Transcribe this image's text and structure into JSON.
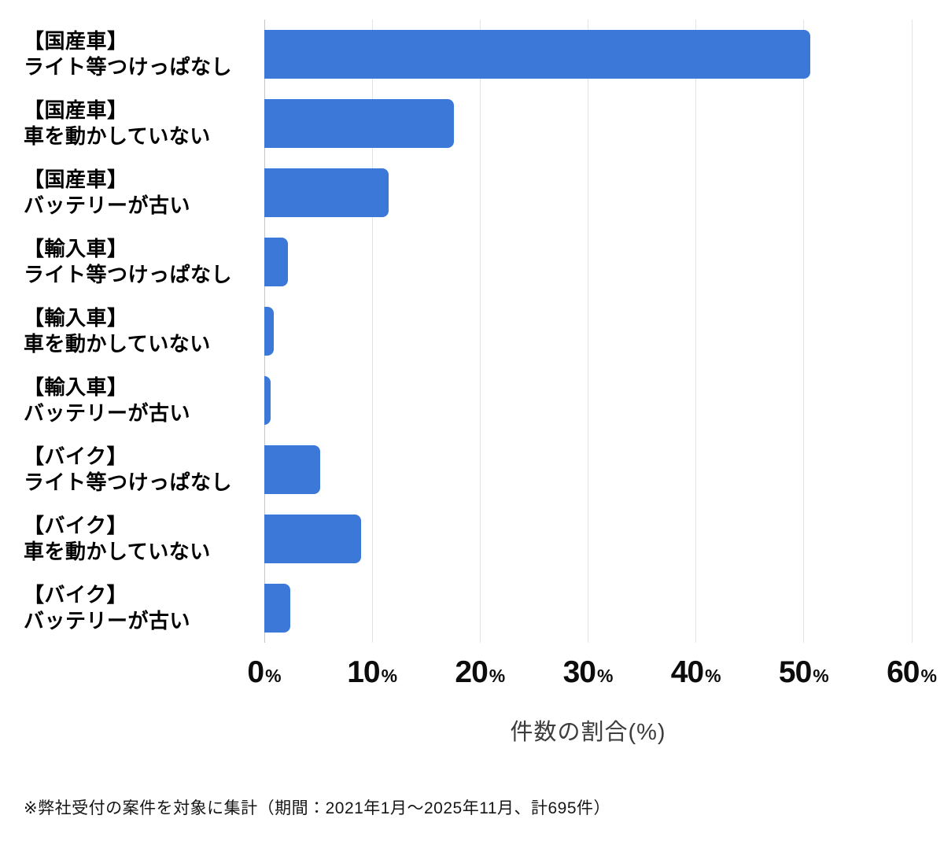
{
  "chart_data": {
    "type": "bar",
    "orientation": "horizontal",
    "title": "",
    "xlabel": "件数の割合(%)",
    "ylabel": "",
    "xlim": [
      0,
      60
    ],
    "grid": true,
    "bar_color": "#3c78d8",
    "categories": [
      {
        "group": "【国産車】",
        "item": "ライト等つけっぱなし"
      },
      {
        "group": "【国産車】",
        "item": "車を動かしていない"
      },
      {
        "group": "【国産車】",
        "item": "バッテリーが古い"
      },
      {
        "group": "【輸入車】",
        "item": "ライト等つけっぱなし"
      },
      {
        "group": "【輸入車】",
        "item": "車を動かしていない"
      },
      {
        "group": "【輸入車】",
        "item": "バッテリーが古い"
      },
      {
        "group": "【バイク】",
        "item": "ライト等つけっぱなし"
      },
      {
        "group": "【バイク】",
        "item": "車を動かしていない"
      },
      {
        "group": "【バイク】",
        "item": "バッテリーが古い"
      }
    ],
    "values": [
      50.6,
      17.6,
      11.5,
      2.2,
      0.9,
      0.6,
      5.2,
      9.0,
      2.4
    ],
    "x_ticks": [
      {
        "num": "0",
        "unit": "%"
      },
      {
        "num": "10",
        "unit": "%"
      },
      {
        "num": "20",
        "unit": "%"
      },
      {
        "num": "30",
        "unit": "%"
      },
      {
        "num": "40",
        "unit": "%"
      },
      {
        "num": "50",
        "unit": "%"
      },
      {
        "num": "60",
        "unit": "%"
      }
    ]
  },
  "footnote": "※弊社受付の案件を対象に集計（期間：2021年1月～2025年11月、計695件）"
}
